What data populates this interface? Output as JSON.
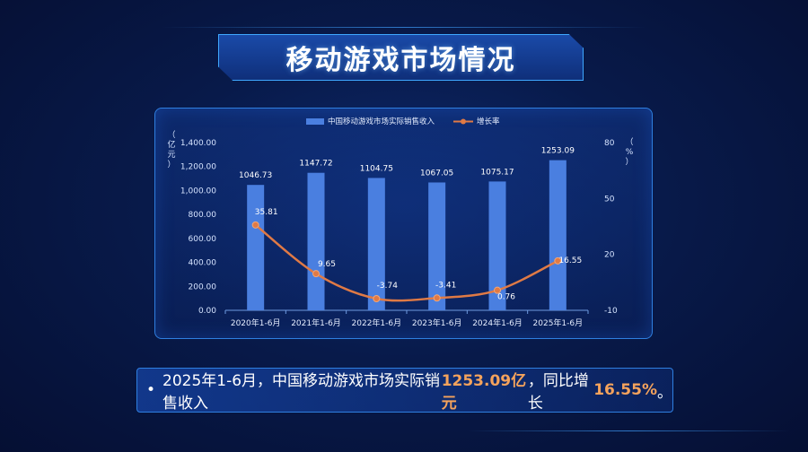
{
  "page": {
    "title": "移动游戏市场情况"
  },
  "summary": {
    "bullet": "•",
    "prefix": "2025年1-6月，中国移动游戏市场实际销售收入",
    "revenue": "1253.09亿元",
    "middle": "，同比增长",
    "growth": "16.55%",
    "suffix": "。"
  },
  "chart_data": {
    "type": "bar",
    "categories": [
      "2020年1-6月",
      "2021年1-6月",
      "2022年1-6月",
      "2023年1-6月",
      "2024年1-6月",
      "2025年1-6月"
    ],
    "series": [
      {
        "name": "中国移动游戏市场实际销售收入",
        "type": "bar",
        "axis": "left",
        "values": [
          1046.73,
          1147.72,
          1104.75,
          1067.05,
          1075.17,
          1253.09
        ],
        "labels": [
          "1046.73",
          "1147.72",
          "1104.75",
          "1067.05",
          "1075.17",
          "1253.09"
        ],
        "color": "#4a7fe0"
      },
      {
        "name": "增长率",
        "type": "line",
        "axis": "right",
        "values": [
          35.81,
          9.65,
          -3.74,
          -3.41,
          0.76,
          16.55
        ],
        "labels": [
          "35.81",
          "9.65",
          "-3.74",
          "-3.41",
          "0.76",
          "16.55"
        ],
        "color": "#e07a45"
      }
    ],
    "ylabel": "（亿元）",
    "y2label": "（%）",
    "ylim": [
      0,
      1400
    ],
    "yticks": [
      "0.00",
      "200.00",
      "400.00",
      "600.00",
      "800.00",
      "1,000.00",
      "1,200.00",
      "1,400.00"
    ],
    "y2lim": [
      -10,
      80
    ],
    "y2ticks": [
      "-10",
      "20",
      "50",
      "80"
    ],
    "legend": "top-center",
    "grid": false
  }
}
